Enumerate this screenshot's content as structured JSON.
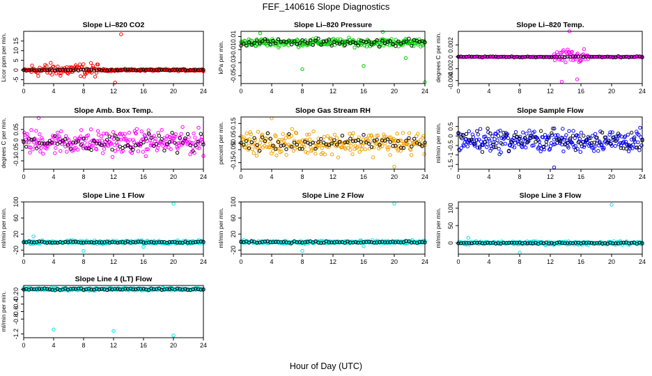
{
  "figure": {
    "title": "FEF_140616  Slope Diagnostics",
    "xlabel": "Hour of Day (UTC)"
  },
  "chart_data": [
    {
      "type": "scatter",
      "title": "Slope Li–820 CO2",
      "ylabel": "Licor ppm per min.",
      "xlim": [
        0,
        24
      ],
      "xticks": [
        0,
        4,
        8,
        12,
        16,
        20,
        24
      ],
      "ylim": [
        -7,
        20
      ],
      "yticks": [
        -5,
        0,
        5,
        10,
        15
      ],
      "color": "#ff0000",
      "base": {
        "center": 0,
        "spread": 0.8
      },
      "bursts": [
        {
          "x": [
            1,
            10
          ],
          "spread": 5
        }
      ],
      "outliers": [
        {
          "x": 13,
          "y": 18.5
        },
        {
          "x": 12.2,
          "y": -6.5
        }
      ],
      "black_spread": 0.4
    },
    {
      "type": "scatter",
      "title": "Slope Li–820 Pressure",
      "ylabel": "kPa per min.",
      "xlim": [
        0,
        24
      ],
      "xticks": [
        0,
        4,
        8,
        12,
        16,
        20,
        24
      ],
      "ylim": [
        -0.062,
        0.018
      ],
      "yticks": [
        -0.05,
        -0.03,
        -0.01,
        0.01
      ],
      "color": "#00cc00",
      "base": {
        "center": 0.001,
        "spread": 0.009
      },
      "bursts": [],
      "outliers": [
        {
          "x": 8,
          "y": -0.04
        },
        {
          "x": 16,
          "y": -0.035
        },
        {
          "x": 21.5,
          "y": -0.023
        },
        {
          "x": 24,
          "y": -0.06
        },
        {
          "x": 18.5,
          "y": 0.017
        },
        {
          "x": 2.5,
          "y": 0.015
        }
      ],
      "black_spread": 0.008
    },
    {
      "type": "scatter",
      "title": "Slope Li–820 Temp.",
      "ylabel": "degrees C per min.",
      "xlim": [
        0,
        24
      ],
      "xticks": [
        0,
        4,
        8,
        12,
        16,
        20,
        24
      ],
      "ylim": [
        -0.0045,
        0.0043
      ],
      "yticks": [
        -0.004,
        -0.002,
        0.0,
        0.002
      ],
      "color": "#ff00ff",
      "base": {
        "center": 0,
        "spread": 5e-05
      },
      "bursts": [
        {
          "x": [
            12.5,
            17
          ],
          "spread": 0.0018
        }
      ],
      "outliers": [
        {
          "x": 14.5,
          "y": 0.0043
        },
        {
          "x": 13.5,
          "y": -0.0042
        },
        {
          "x": 15.5,
          "y": -0.0038
        }
      ],
      "black_spread": 0.0002
    },
    {
      "type": "scatter",
      "title": "Slope Amb. Box Temp.",
      "ylabel": "degrees C per min.",
      "xlim": [
        0,
        24
      ],
      "xticks": [
        0,
        4,
        8,
        12,
        16,
        20,
        24
      ],
      "ylim": [
        -0.14,
        0.11
      ],
      "yticks": [
        -0.1,
        -0.05,
        0.0,
        0.05
      ],
      "color": "#ff00ff",
      "base": {
        "center": -0.01,
        "spread": 0.085
      },
      "bursts": [],
      "outliers": [
        {
          "x": 2,
          "y": 0.105
        }
      ],
      "black_spread": 0.06
    },
    {
      "type": "scatter",
      "title": "Slope Gas Stream RH",
      "ylabel": "percent per min.",
      "xlim": [
        0,
        24
      ],
      "xticks": [
        0,
        4,
        8,
        12,
        16,
        20,
        24
      ],
      "ylim": [
        -0.2,
        0.2
      ],
      "yticks": [
        -0.15,
        -0.05,
        0.0,
        0.05,
        0.15
      ],
      "color": "#f0a000",
      "base": {
        "center": 0.0,
        "spread": 0.13
      },
      "bursts": [],
      "outliers": [
        {
          "x": 4,
          "y": 0.19
        },
        {
          "x": 20,
          "y": -0.18
        }
      ],
      "black_spread": 0.09
    },
    {
      "type": "scatter",
      "title": "Slope Sample Flow",
      "ylabel": "ml/min per min.",
      "xlim": [
        0,
        24
      ],
      "xticks": [
        0,
        4,
        8,
        12,
        16,
        20,
        24
      ],
      "ylim": [
        -1.75,
        1.0
      ],
      "yticks": [
        -1.5,
        -1.0,
        -0.5,
        0.0,
        0.5
      ],
      "color": "#0000ff",
      "base": {
        "center": -0.25,
        "spread": 0.85
      },
      "bursts": [],
      "outliers": [
        {
          "x": 12.5,
          "y": -1.65
        }
      ],
      "black_spread": 0.8
    },
    {
      "type": "scatter",
      "title": "Slope Line 1 Flow",
      "ylabel": "ml/min per min.",
      "xlim": [
        0,
        24
      ],
      "xticks": [
        0,
        4,
        8,
        12,
        16,
        20,
        24
      ],
      "ylim": [
        -30,
        100
      ],
      "yticks": [
        -20,
        20,
        60,
        100
      ],
      "color": "#00e5e5",
      "base": {
        "center": 0,
        "spread": 6
      },
      "bursts": [],
      "outliers": [
        {
          "x": 20,
          "y": 96
        },
        {
          "x": 8,
          "y": -22
        },
        {
          "x": 16,
          "y": -12
        },
        {
          "x": 1.3,
          "y": 14
        }
      ],
      "black_spread": 3
    },
    {
      "type": "scatter",
      "title": "Slope Line 2 Flow",
      "ylabel": "ml/min per min.",
      "xlim": [
        0,
        24
      ],
      "xticks": [
        0,
        4,
        8,
        12,
        16,
        20,
        24
      ],
      "ylim": [
        -30,
        100
      ],
      "yticks": [
        -20,
        20,
        60,
        100
      ],
      "color": "#00e5e5",
      "base": {
        "center": 0,
        "spread": 6
      },
      "bursts": [],
      "outliers": [
        {
          "x": 20,
          "y": 96
        },
        {
          "x": 8,
          "y": -22
        },
        {
          "x": 16,
          "y": -10
        }
      ],
      "black_spread": 3
    },
    {
      "type": "scatter",
      "title": "Slope Line 3 Flow",
      "ylabel": "ml/min per min.",
      "xlim": [
        0,
        24
      ],
      "xticks": [
        0,
        4,
        8,
        12,
        16,
        20,
        24
      ],
      "ylim": [
        -32,
        118
      ],
      "yticks": [
        0,
        50,
        100
      ],
      "color": "#00e5e5",
      "base": {
        "center": 0,
        "spread": 7
      },
      "bursts": [],
      "outliers": [
        {
          "x": 20,
          "y": 110
        },
        {
          "x": 8,
          "y": -28
        },
        {
          "x": 1.3,
          "y": 15
        }
      ],
      "black_spread": 3
    },
    {
      "type": "scatter",
      "title": "Slope Line 4 (LT) Flow",
      "ylabel": "ml/min per min.",
      "xlim": [
        0,
        24
      ],
      "xticks": [
        0,
        4,
        8,
        12,
        16,
        20,
        24
      ],
      "ylim": [
        -1.3,
        0.1
      ],
      "yticks": [
        -1.2,
        -0.8,
        -0.6,
        -0.4,
        -0.2,
        0.0
      ],
      "color": "#00e5e5",
      "base": {
        "center": 0,
        "spread": 0.05
      },
      "bursts": [],
      "outliers": [
        {
          "x": 4,
          "y": -1.08
        },
        {
          "x": 12,
          "y": -1.12
        },
        {
          "x": 20,
          "y": -1.24
        }
      ],
      "black_spread": 0.04
    }
  ]
}
